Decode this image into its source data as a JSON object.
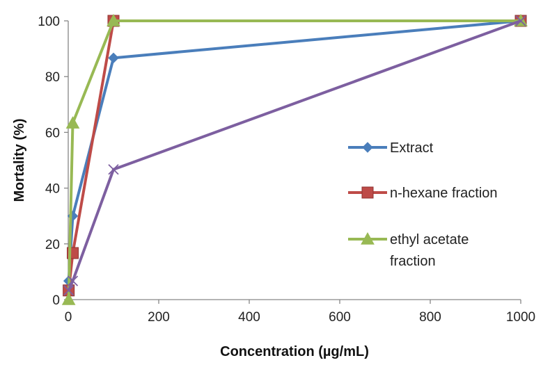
{
  "chart_data": {
    "type": "line",
    "title": "",
    "xlabel": "Concentration (µg/mL)",
    "ylabel": "Mortality (%)",
    "xlim": [
      0,
      1000
    ],
    "ylim": [
      0,
      100
    ],
    "xticks": [
      0,
      200,
      400,
      600,
      800,
      1000
    ],
    "yticks": [
      0,
      20,
      40,
      60,
      80,
      100
    ],
    "grid": false,
    "legend_position": "right",
    "series": [
      {
        "name": "Extract",
        "color": "#4a7ebb",
        "marker": "diamond",
        "x": [
          1,
          10,
          100,
          1000
        ],
        "y": [
          6.7,
          30,
          86.7,
          100
        ]
      },
      {
        "name": "n-hexane fraction",
        "color": "#be4b48",
        "marker": "square",
        "x": [
          1,
          10,
          100,
          1000
        ],
        "y": [
          3.3,
          16.7,
          100,
          100
        ]
      },
      {
        "name": "ethyl acetate fraction",
        "color": "#98b954",
        "marker": "triangle",
        "x": [
          1,
          10,
          100,
          1000
        ],
        "y": [
          0,
          63.3,
          100,
          100
        ]
      },
      {
        "name": "",
        "color": "#7d5fa0",
        "marker": "x",
        "x": [
          1,
          10,
          100,
          1000
        ],
        "y": [
          3.3,
          6.7,
          46.7,
          100
        ]
      }
    ],
    "legend_lines": [
      [
        "Extract"
      ],
      [
        "n-hexane fraction"
      ],
      [
        "ethyl acetate",
        "fraction"
      ]
    ]
  }
}
